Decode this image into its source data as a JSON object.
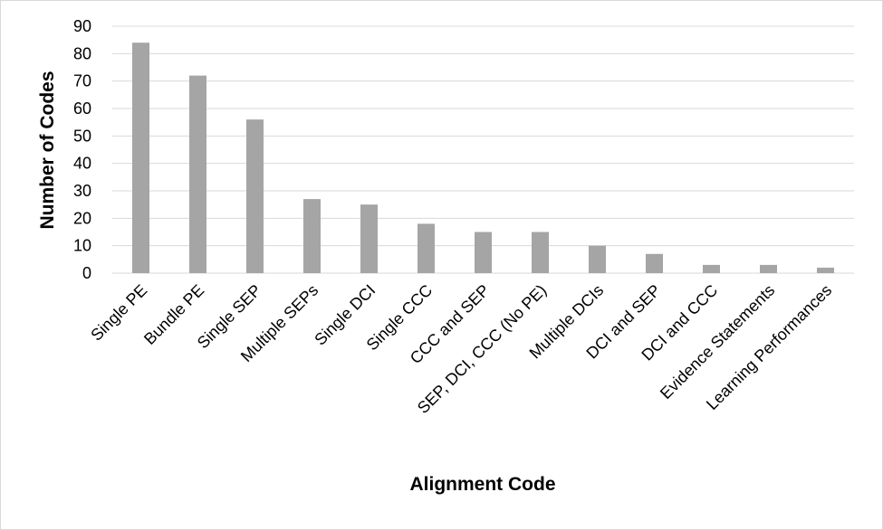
{
  "chart_data": {
    "type": "bar",
    "title": "",
    "xlabel": "Alignment Code",
    "ylabel": "Number of Codes",
    "ylim": [
      0,
      90
    ],
    "yticks": [
      0,
      10,
      20,
      30,
      40,
      50,
      60,
      70,
      80,
      90
    ],
    "grid": true,
    "legend": "none",
    "bar_color": "#a5a5a5",
    "grid_color": "#d9d9d9",
    "categories": [
      "Single PE",
      "Bundle PE",
      "Single SEP",
      "Multiple SEPs",
      "Single DCI",
      "Single CCC",
      "CCC and SEP",
      "SEP, DCI, CCC (No PE)",
      "Multiple DCIs",
      "DCI and SEP",
      "DCI and CCC",
      "Evidence Statements",
      "Learning Performances"
    ],
    "values": [
      84,
      72,
      56,
      27,
      25,
      18,
      15,
      15,
      10,
      7,
      3,
      3,
      2
    ]
  }
}
